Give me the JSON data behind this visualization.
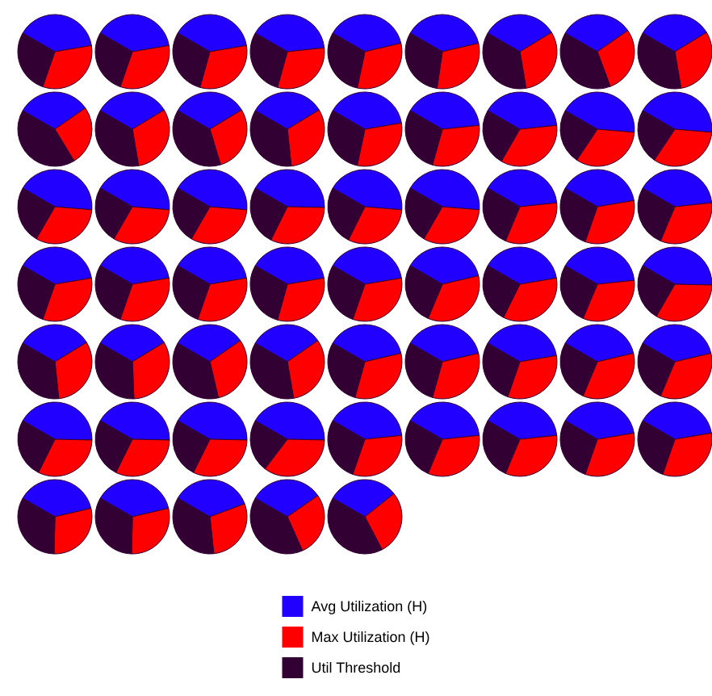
{
  "chart_data": {
    "type": "pie",
    "categories": [
      "Avg Utilization (H)",
      "Max Utilization (H)",
      "Util Threshold"
    ],
    "colors": [
      "#2200ff",
      "#ff0000",
      "#330033"
    ],
    "legend": "bottom",
    "series": [
      {
        "values": [
          39,
          33,
          28
        ]
      },
      {
        "values": [
          39,
          33,
          28
        ]
      },
      {
        "values": [
          39,
          32,
          29
        ]
      },
      {
        "values": [
          40,
          31,
          29
        ]
      },
      {
        "values": [
          38,
          32,
          30
        ]
      },
      {
        "values": [
          38,
          31,
          31
        ]
      },
      {
        "values": [
          33,
          31,
          36
        ]
      },
      {
        "values": [
          32,
          29,
          39
        ]
      },
      {
        "values": [
          33,
          31,
          36
        ]
      },
      {
        "values": [
          32,
          26,
          42
        ]
      },
      {
        "values": [
          33,
          31,
          36
        ]
      },
      {
        "values": [
          33,
          29,
          38
        ]
      },
      {
        "values": [
          33,
          32,
          35
        ]
      },
      {
        "values": [
          39,
          31,
          30
        ]
      },
      {
        "values": [
          40,
          31,
          29
        ]
      },
      {
        "values": [
          40,
          35,
          25
        ]
      },
      {
        "values": [
          43,
          33,
          24
        ]
      },
      {
        "values": [
          43,
          33,
          24
        ]
      },
      {
        "values": [
          43,
          32,
          25
        ]
      },
      {
        "values": [
          43,
          32,
          25
        ]
      },
      {
        "values": [
          43,
          32,
          25
        ]
      },
      {
        "values": [
          42,
          32,
          26
        ]
      },
      {
        "values": [
          43,
          31,
          26
        ]
      },
      {
        "values": [
          43,
          32,
          25
        ]
      },
      {
        "values": [
          40,
          33,
          27
        ]
      },
      {
        "values": [
          39,
          33,
          28
        ]
      },
      {
        "values": [
          40,
          33,
          27
        ]
      },
      {
        "values": [
          39,
          33,
          28
        ]
      },
      {
        "values": [
          39,
          33,
          28
        ]
      },
      {
        "values": [
          39,
          33,
          28
        ]
      },
      {
        "values": [
          39,
          32,
          29
        ]
      },
      {
        "values": [
          39,
          33,
          28
        ]
      },
      {
        "values": [
          38,
          35,
          27
        ]
      },
      {
        "values": [
          39,
          35,
          26
        ]
      },
      {
        "values": [
          40,
          33,
          27
        ]
      },
      {
        "values": [
          42,
          33,
          25
        ]
      },
      {
        "values": [
          33,
          32,
          35
        ]
      },
      {
        "values": [
          33,
          33,
          34
        ]
      },
      {
        "values": [
          32,
          31,
          37
        ]
      },
      {
        "values": [
          32,
          32,
          36
        ]
      },
      {
        "values": [
          38,
          33,
          29
        ]
      },
      {
        "values": [
          38,
          33,
          29
        ]
      },
      {
        "values": [
          39,
          33,
          28
        ]
      },
      {
        "values": [
          38,
          35,
          27
        ]
      },
      {
        "values": [
          38,
          35,
          27
        ]
      },
      {
        "values": [
          42,
          32,
          26
        ]
      },
      {
        "values": [
          42,
          32,
          26
        ]
      },
      {
        "values": [
          42,
          32,
          26
        ]
      },
      {
        "values": [
          42,
          35,
          23
        ]
      },
      {
        "values": [
          40,
          32,
          28
        ]
      },
      {
        "values": [
          40,
          33,
          27
        ]
      },
      {
        "values": [
          40,
          33,
          27
        ]
      },
      {
        "values": [
          39,
          33,
          28
        ]
      },
      {
        "values": [
          39,
          33,
          28
        ]
      },
      {
        "values": [
          38,
          29,
          33
        ]
      },
      {
        "values": [
          38,
          29,
          33
        ]
      },
      {
        "values": [
          36,
          29,
          35
        ]
      },
      {
        "values": [
          32,
          28,
          40
        ]
      },
      {
        "values": [
          31,
          28,
          41
        ]
      }
    ]
  }
}
